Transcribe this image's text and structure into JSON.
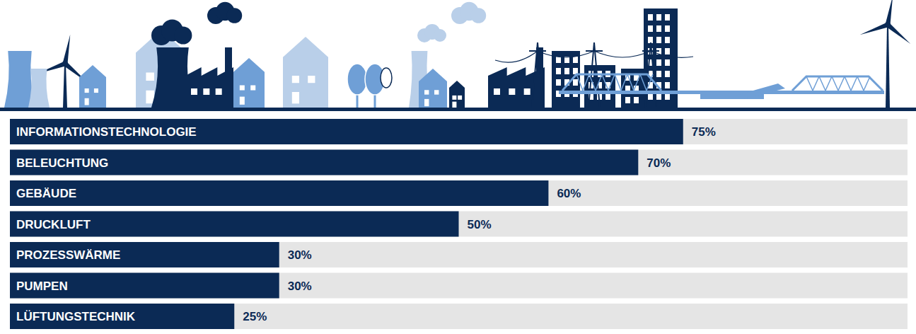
{
  "chart_data": {
    "type": "bar",
    "orientation": "horizontal",
    "categories": [
      "INFORMATIONSTECHNOLOGIE",
      "BELEUCHTUNG",
      "GEBÄUDE",
      "DRUCKLUFT",
      "PROZESSWÄRME",
      "PUMPEN",
      "LÜFTUNGSTECHNIK"
    ],
    "values": [
      75,
      70,
      60,
      50,
      30,
      30,
      25
    ],
    "value_labels": [
      "75%",
      "70%",
      "60%",
      "50%",
      "30%",
      "30%",
      "25%"
    ],
    "xlim": [
      0,
      100
    ],
    "color": "#0b2a55",
    "data_labels": true,
    "tick_labels": false,
    "grid": false
  }
}
